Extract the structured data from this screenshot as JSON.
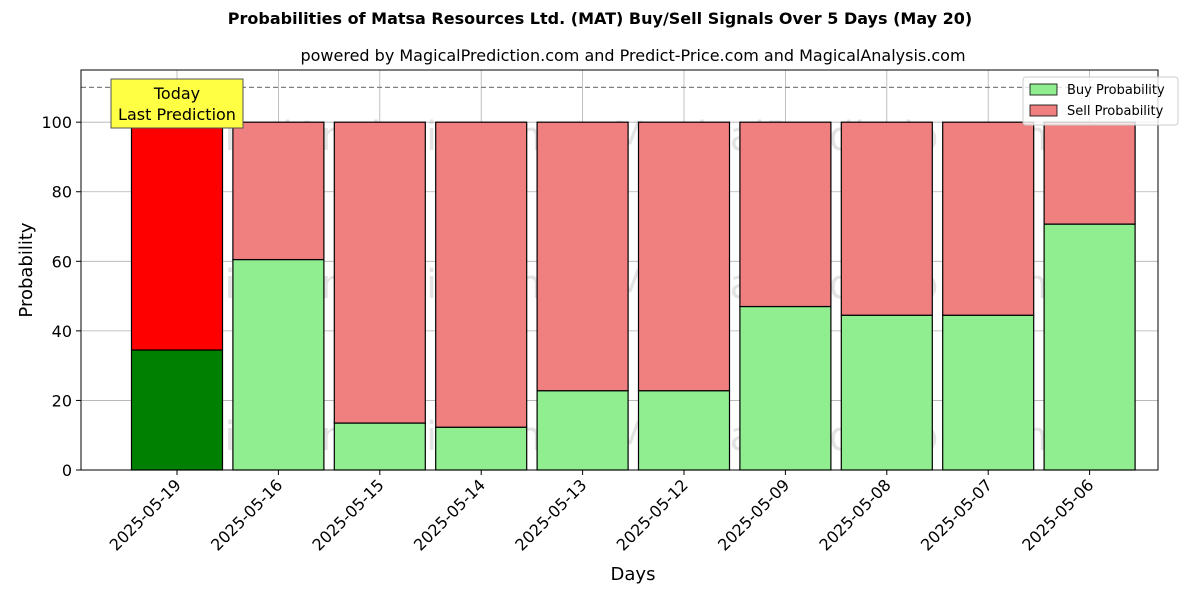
{
  "chart_data": {
    "type": "bar",
    "stacked": true,
    "title": "Probabilities of Matsa Resources Ltd. (MAT) Buy/Sell Signals Over 5 Days (May 20)",
    "subtitle": "powered by MagicalPrediction.com and Predict-Price.com and MagicalAnalysis.com",
    "xlabel": "Days",
    "ylabel": "Probability",
    "ylim": [
      0,
      115
    ],
    "yticks": [
      0,
      20,
      40,
      60,
      80,
      100
    ],
    "reference_line": 110,
    "grid": true,
    "legend_position": "top-right",
    "categories": [
      "2025-05-19",
      "2025-05-16",
      "2025-05-15",
      "2025-05-14",
      "2025-05-13",
      "2025-05-12",
      "2025-05-09",
      "2025-05-08",
      "2025-05-07",
      "2025-05-06"
    ],
    "series": [
      {
        "name": "Buy Probability",
        "color": "#90ee90",
        "highlight_color": "#008000",
        "values": [
          34.5,
          60.5,
          13.5,
          12.3,
          22.8,
          22.8,
          47.0,
          44.5,
          44.5,
          70.7
        ]
      },
      {
        "name": "Sell Probability",
        "color": "#f08080",
        "highlight_color": "#ff0000",
        "values": [
          65.5,
          39.5,
          86.5,
          87.7,
          77.2,
          77.2,
          53.0,
          55.5,
          55.5,
          29.3
        ]
      }
    ],
    "annotation": {
      "lines": [
        "Today",
        "Last Prediction"
      ],
      "bar_index": 0,
      "color": "#ffff44"
    },
    "watermarks": [
      "MagicalAnalysis.com",
      "MagicalPrediction.com"
    ]
  }
}
